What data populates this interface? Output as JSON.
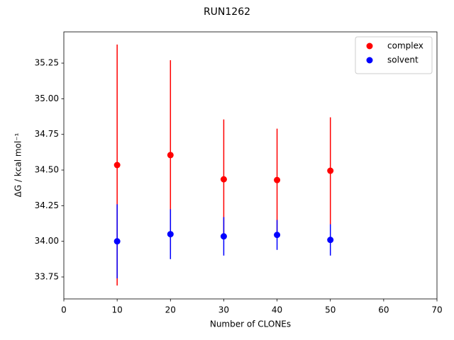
{
  "chart_data": {
    "type": "errorbar",
    "title": "RUN1262",
    "xlabel": "Number of CLONEs",
    "ylabel": "ΔG / kcal mol⁻¹",
    "x": [
      10,
      20,
      30,
      40,
      50
    ],
    "series": [
      {
        "name": "complex",
        "color": "#ff0000",
        "values": [
          34.535,
          34.605,
          34.435,
          34.43,
          34.495
        ],
        "errors": [
          0.845,
          0.665,
          0.42,
          0.36,
          0.375
        ]
      },
      {
        "name": "solvent",
        "color": "#0000ff",
        "values": [
          34.0,
          34.05,
          34.035,
          34.045,
          34.01
        ],
        "errors": [
          0.26,
          0.175,
          0.135,
          0.105,
          0.11
        ]
      }
    ],
    "xlim": [
      0,
      70
    ],
    "xticks": [
      0,
      10,
      20,
      30,
      40,
      50,
      60,
      70
    ],
    "ylim": [
      33.596,
      35.469
    ],
    "yticks": [
      33.75,
      {
        "value": 34,
        "label": "34.00"
      },
      34.25,
      {
        "value": 34.5,
        "label": "34.50"
      },
      34.75,
      {
        "value": 35,
        "label": "35.00"
      },
      35.25
    ],
    "legend": "upper right"
  }
}
